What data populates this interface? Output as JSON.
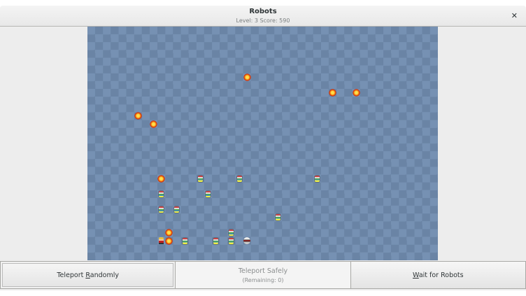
{
  "window": {
    "title": "Robots",
    "subtitle": "Level: 3  Score: 590",
    "close_icon": "close-icon"
  },
  "board": {
    "columns": 45,
    "rows": 30,
    "colors": {
      "light": "#7691b3",
      "dark": "#6a84a5"
    },
    "player": {
      "col": 9,
      "row": 27
    },
    "junk_heaps": [
      [
        20,
        6
      ],
      [
        31,
        8
      ],
      [
        34,
        8
      ],
      [
        6,
        11
      ],
      [
        8,
        12
      ],
      [
        9,
        19
      ],
      [
        10,
        26
      ],
      [
        10,
        27
      ]
    ],
    "robots": [
      [
        14,
        19
      ],
      [
        19,
        19
      ],
      [
        29,
        19
      ],
      [
        9,
        21
      ],
      [
        15,
        21
      ],
      [
        9,
        23
      ],
      [
        11,
        23
      ],
      [
        24,
        24
      ],
      [
        18,
        26
      ],
      [
        12,
        27
      ],
      [
        16,
        27
      ],
      [
        18,
        27
      ]
    ],
    "fast_robots": [
      [
        20,
        27
      ]
    ]
  },
  "buttons": {
    "teleport_randomly": {
      "pre": "Teleport ",
      "mnemonic": "R",
      "post": "andomly"
    },
    "teleport_safely": {
      "label": "Teleport Safely",
      "remaining": "(Remaining: 0)",
      "enabled": false
    },
    "wait": {
      "pre": "",
      "mnemonic": "W",
      "post": "ait for Robots"
    }
  }
}
